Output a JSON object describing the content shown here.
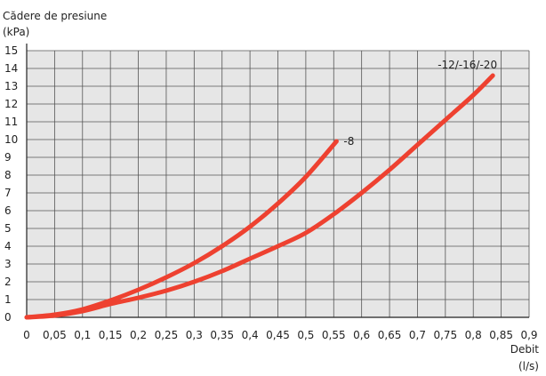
{
  "chart_data": {
    "type": "line",
    "title": "",
    "ylabel_line1": "Cădere de presiune",
    "ylabel_line2": "(kPa)",
    "xlabel_line1": "Debit",
    "xlabel_line2": "(l/s)",
    "xlim": [
      0,
      0.9
    ],
    "ylim": [
      0,
      15
    ],
    "x_ticks": [
      0,
      0.05,
      0.1,
      0.15,
      0.2,
      0.25,
      0.3,
      0.35,
      0.4,
      0.45,
      0.5,
      0.55,
      0.6,
      0.65,
      0.7,
      0.75,
      0.8,
      0.85,
      0.9
    ],
    "x_tick_labels": [
      "0",
      "0,05",
      "0,1",
      "0,15",
      "0,2",
      "0,25",
      "0,3",
      "0,35",
      "0,4",
      "0,45",
      "0,5",
      "0,55",
      "0,6",
      "0,65",
      "0,7",
      "0,75",
      "0,8",
      "0,85",
      "0,9"
    ],
    "y_ticks": [
      0,
      1,
      2,
      3,
      4,
      5,
      6,
      7,
      8,
      9,
      10,
      11,
      12,
      13,
      14,
      15
    ],
    "y_tick_labels": [
      "0",
      "1",
      "2",
      "3",
      "4",
      "5",
      "6",
      "7",
      "8",
      "9",
      "10",
      "11",
      "12",
      "13",
      "14",
      "15"
    ],
    "grid": true,
    "background_color": "#e6e6e6",
    "grid_color": "#555555",
    "series_color": "#ee4130",
    "series": [
      {
        "name": "-8",
        "x": [
          0,
          0.05,
          0.1,
          0.15,
          0.2,
          0.25,
          0.3,
          0.35,
          0.4,
          0.45,
          0.5,
          0.555
        ],
        "y": [
          0,
          0.15,
          0.45,
          0.95,
          1.55,
          2.25,
          3.05,
          4.0,
          5.1,
          6.4,
          7.9,
          9.9
        ]
      },
      {
        "name": "-12/-16/-20",
        "x": [
          0,
          0.05,
          0.1,
          0.15,
          0.2,
          0.25,
          0.3,
          0.35,
          0.4,
          0.45,
          0.5,
          0.55,
          0.6,
          0.65,
          0.7,
          0.75,
          0.8,
          0.835
        ],
        "y": [
          0,
          0.1,
          0.35,
          0.75,
          1.1,
          1.5,
          2.0,
          2.6,
          3.3,
          4.0,
          4.75,
          5.8,
          7.0,
          8.3,
          9.7,
          11.1,
          12.5,
          13.6
        ]
      }
    ]
  }
}
